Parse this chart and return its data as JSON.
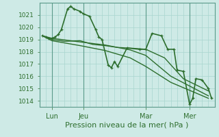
{
  "title": "",
  "xlabel": "Pression niveau de la mer( hPa )",
  "bg_color": "#ceeae6",
  "grid_color": "#a8d5cf",
  "line_color": "#2d6e2d",
  "tick_color": "#2d6e2d",
  "spine_color": "#5a9a8a",
  "ylim": [
    1013.5,
    1022.0
  ],
  "yticks": [
    1014,
    1015,
    1016,
    1017,
    1018,
    1019,
    1020,
    1021
  ],
  "xlim": [
    0,
    28
  ],
  "xtick_positions": [
    2,
    7,
    17,
    24
  ],
  "xtick_labels": [
    "Lun",
    "Jeu",
    "Mar",
    "Mer"
  ],
  "vline_positions": [
    2,
    7,
    17,
    24
  ],
  "series": [
    {
      "x": [
        0.5,
        1.0,
        1.5,
        2.0,
        2.5,
        3.0,
        3.5,
        4.5,
        5.0,
        5.5,
        6.5,
        7.0,
        8.0,
        9.0,
        9.5,
        10.0,
        11.0,
        11.5,
        12.0,
        12.5,
        14.0,
        16.0,
        17.0,
        18.0,
        19.5,
        20.5,
        21.5,
        22.0,
        23.0,
        24.0,
        24.5,
        25.0,
        26.0,
        27.0,
        27.5
      ],
      "y": [
        1019.3,
        1019.2,
        1019.1,
        1019.1,
        1019.2,
        1019.4,
        1019.8,
        1021.5,
        1021.7,
        1021.5,
        1021.3,
        1021.1,
        1020.9,
        1019.8,
        1019.2,
        1019.0,
        1016.9,
        1016.7,
        1017.2,
        1016.8,
        1018.3,
        1018.2,
        1018.2,
        1019.5,
        1019.3,
        1018.2,
        1018.2,
        1016.5,
        1016.4,
        1013.7,
        1014.2,
        1015.8,
        1015.7,
        1015.0,
        1014.2
      ],
      "marker": "+",
      "lw": 1.2
    },
    {
      "x": [
        0.5,
        1.5,
        2.0,
        4.0,
        6.5,
        8.5,
        10.5,
        12.5,
        14.5,
        17.0,
        20.0,
        23.0,
        27.0
      ],
      "y": [
        1019.3,
        1019.1,
        1019.0,
        1018.85,
        1018.9,
        1018.6,
        1018.5,
        1018.35,
        1018.3,
        1018.2,
        1017.5,
        1015.8,
        1014.8
      ],
      "marker": null,
      "lw": 1.0
    },
    {
      "x": [
        0.5,
        2.0,
        6.5,
        10.5,
        14.5,
        17.0,
        21.0,
        27.0
      ],
      "y": [
        1019.3,
        1019.1,
        1018.8,
        1018.55,
        1018.15,
        1017.7,
        1016.0,
        1014.4
      ],
      "marker": null,
      "lw": 1.0
    },
    {
      "x": [
        0.5,
        2.0,
        6.5,
        10.5,
        14.5,
        17.0,
        21.0,
        27.0
      ],
      "y": [
        1019.3,
        1018.9,
        1018.5,
        1018.1,
        1017.5,
        1016.8,
        1015.5,
        1014.2
      ],
      "marker": null,
      "lw": 1.0
    }
  ],
  "markersize": 3.5,
  "xlabel_fontsize": 8,
  "ytick_fontsize": 6.5,
  "xtick_fontsize": 7
}
